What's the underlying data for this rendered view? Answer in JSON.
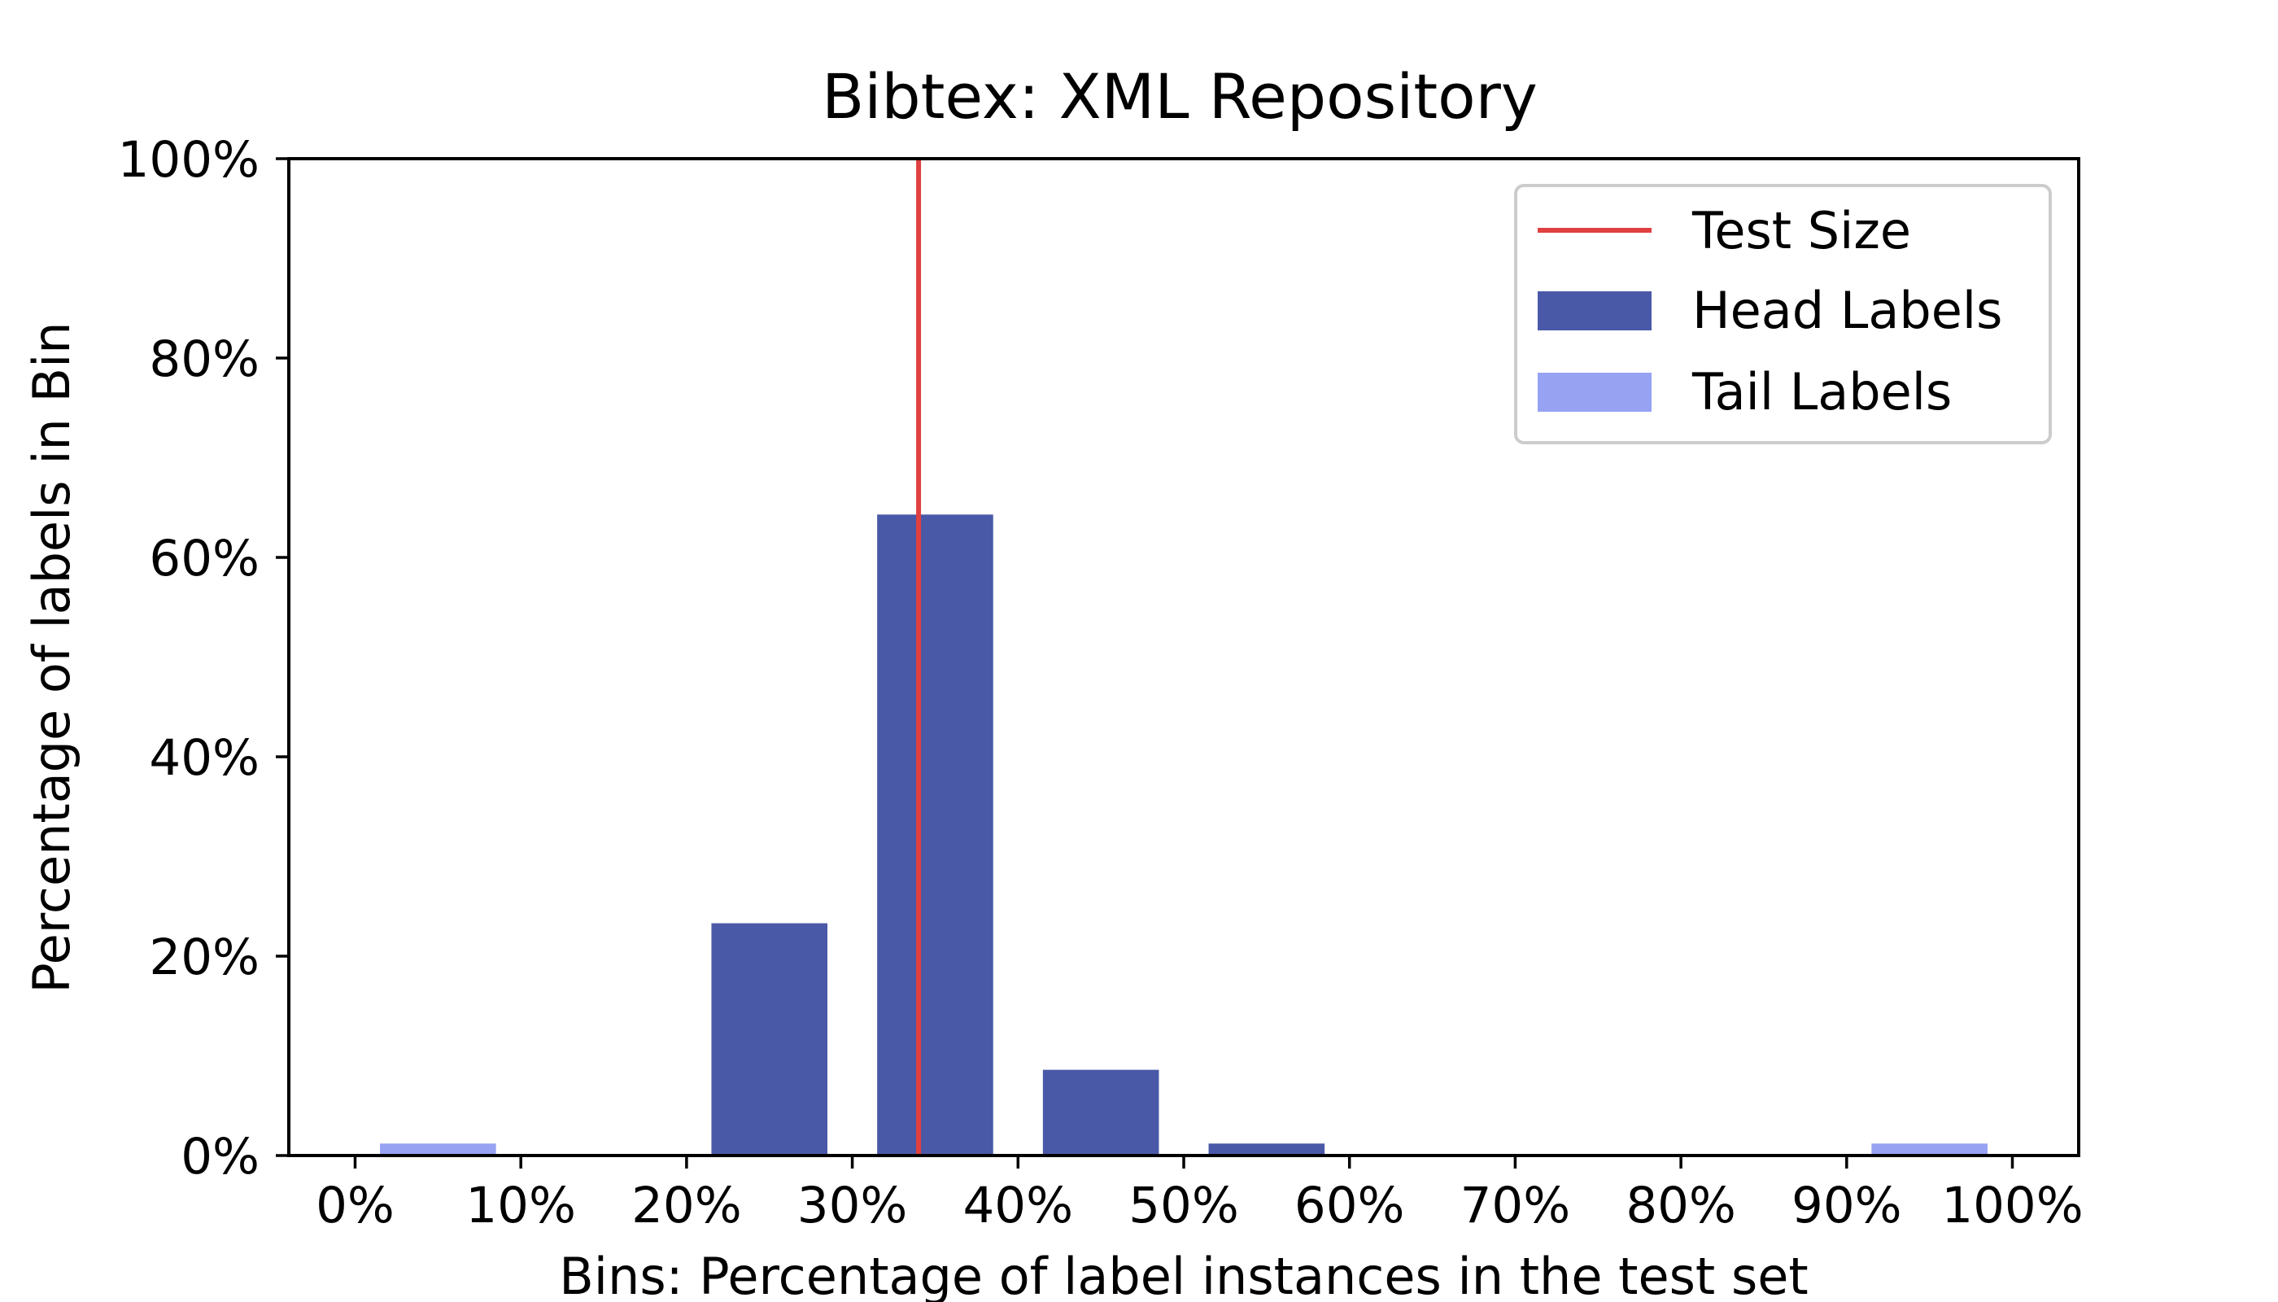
{
  "chart_data": {
    "type": "bar",
    "title": "Bibtex: XML Repository",
    "xlabel": "Bins: Percentage of label instances in the test set",
    "ylabel": "Percentage of labels in Bin",
    "x_ticks": [
      "0%",
      "10%",
      "20%",
      "30%",
      "40%",
      "50%",
      "60%",
      "70%",
      "80%",
      "90%",
      "100%"
    ],
    "y_ticks": [
      "0%",
      "20%",
      "40%",
      "60%",
      "80%",
      "100%"
    ],
    "xlim": [
      -0.04,
      1.04
    ],
    "ylim": [
      0,
      100
    ],
    "bin_width": 0.07,
    "series": [
      {
        "name": "Head Labels",
        "color": "#4a59a7",
        "bars": [
          {
            "x": 0.25,
            "value": 23.3
          },
          {
            "x": 0.35,
            "value": 64.3
          },
          {
            "x": 0.45,
            "value": 8.6
          },
          {
            "x": 0.55,
            "value": 1.2
          }
        ]
      },
      {
        "name": "Tail Labels",
        "color": "#97a2f3",
        "bars": [
          {
            "x": 0.05,
            "value": 1.2
          },
          {
            "x": 0.95,
            "value": 1.2
          }
        ]
      }
    ],
    "reference_line": {
      "name": "Test Size",
      "x": 0.34,
      "color": "#e04040"
    },
    "legend": {
      "placement": "top-right",
      "entries": [
        "Test Size",
        "Head Labels",
        "Tail Labels"
      ]
    },
    "grid": false
  }
}
